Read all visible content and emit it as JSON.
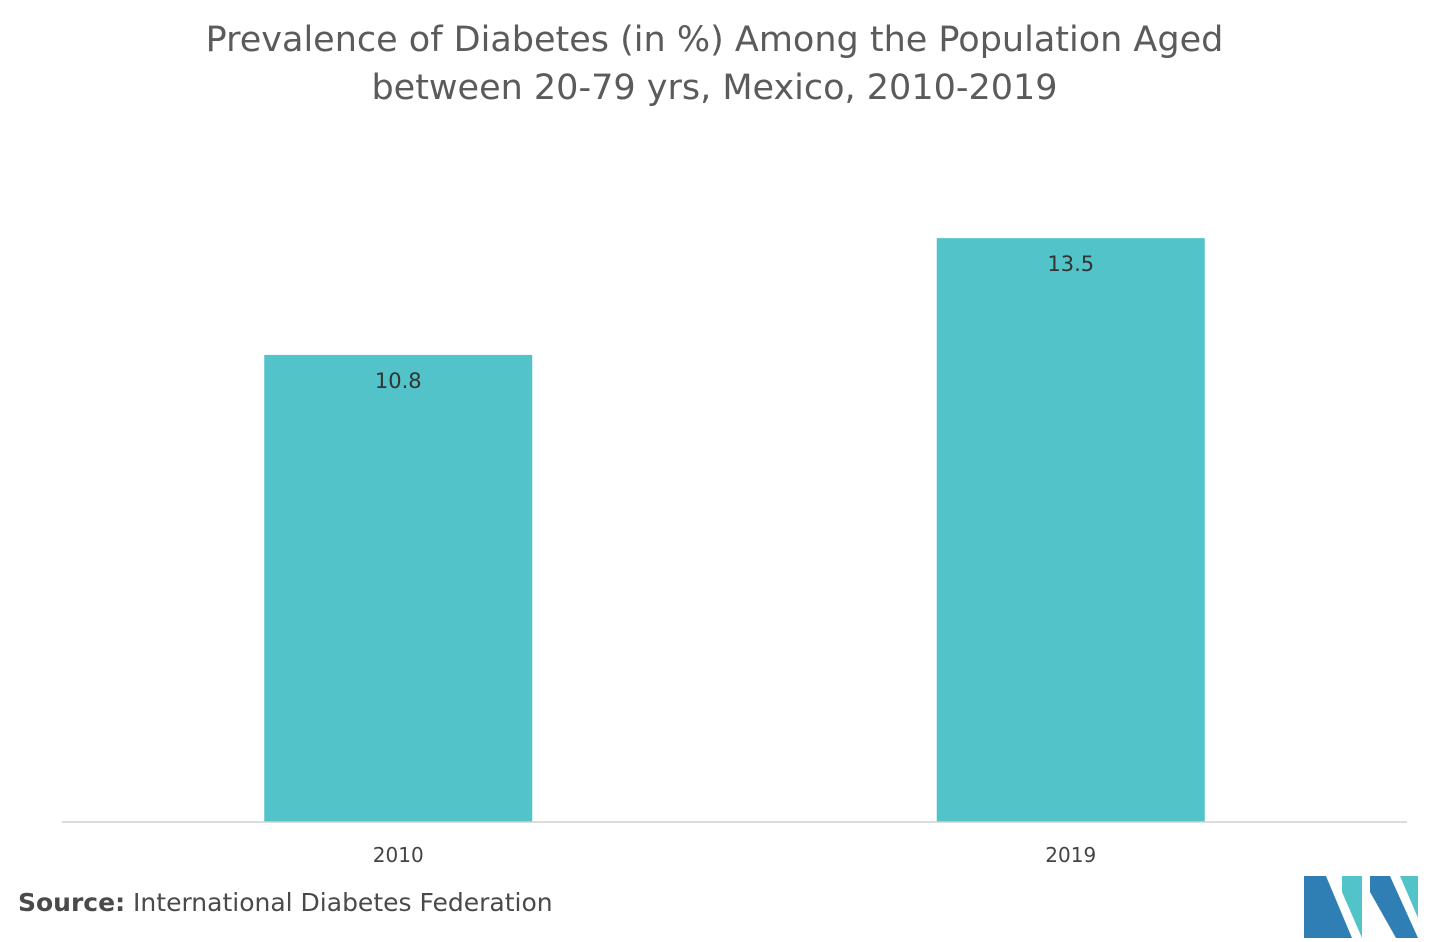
{
  "chart_data": {
    "type": "bar",
    "title_line1": "Prevalence of Diabetes (in %) Among the Population Aged",
    "title_line2": "between 20-79 yrs, Mexico, 2010-2019",
    "categories": [
      "2010",
      "2019"
    ],
    "values": [
      10.8,
      13.5
    ],
    "data_labels": [
      "10.8",
      "13.5"
    ],
    "xlabel": "",
    "ylabel": "",
    "ylim": [
      0,
      16
    ],
    "grid": false,
    "legend": "none",
    "bar_color": "#52c4c9"
  },
  "source": {
    "label": "Source:",
    "text": "International Diabetes Federation"
  },
  "colors": {
    "logo_dark": "#2f7fb5",
    "logo_teal": "#52c4c9"
  }
}
